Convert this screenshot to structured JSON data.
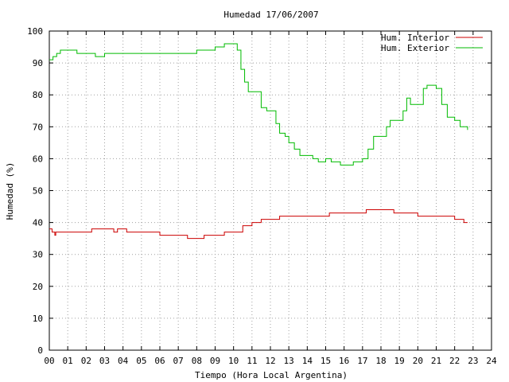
{
  "chart_data": {
    "type": "line",
    "title": "Humedad 17/06/2007",
    "xlabel": "Tiempo (Hora Local Argentina)",
    "ylabel": "Humedad (%)",
    "xlim": [
      0,
      24
    ],
    "ylim": [
      0,
      100
    ],
    "x_ticks": [
      "00",
      "01",
      "02",
      "03",
      "04",
      "05",
      "06",
      "07",
      "08",
      "09",
      "10",
      "11",
      "12",
      "13",
      "14",
      "15",
      "16",
      "17",
      "18",
      "19",
      "20",
      "21",
      "22",
      "23",
      "24"
    ],
    "y_ticks": [
      "0",
      "10",
      "20",
      "30",
      "40",
      "50",
      "60",
      "70",
      "80",
      "90",
      "100"
    ],
    "grid": true,
    "legend_position": "top-right",
    "series": [
      {
        "name": "Hum. Interior",
        "color": "#cc0000",
        "points": [
          [
            0,
            38
          ],
          [
            0.15,
            37
          ],
          [
            0.3,
            36
          ],
          [
            0.35,
            37
          ],
          [
            1,
            37
          ],
          [
            1.5,
            37
          ],
          [
            2,
            37
          ],
          [
            2.3,
            38
          ],
          [
            3,
            38
          ],
          [
            3.5,
            37
          ],
          [
            3.7,
            38
          ],
          [
            4.2,
            37
          ],
          [
            4.5,
            37
          ],
          [
            5,
            37
          ],
          [
            5.5,
            37
          ],
          [
            6,
            36
          ],
          [
            6.5,
            36
          ],
          [
            7,
            36
          ],
          [
            7.5,
            35
          ],
          [
            8,
            35
          ],
          [
            8.4,
            36
          ],
          [
            9,
            36
          ],
          [
            9.5,
            37
          ],
          [
            10,
            37
          ],
          [
            10.5,
            39
          ],
          [
            11,
            40
          ],
          [
            11.5,
            41
          ],
          [
            12,
            41
          ],
          [
            12.5,
            42
          ],
          [
            13,
            42
          ],
          [
            13.5,
            42
          ],
          [
            14,
            42
          ],
          [
            14.5,
            42
          ],
          [
            15,
            42
          ],
          [
            15.2,
            43
          ],
          [
            15.8,
            43
          ],
          [
            16,
            43
          ],
          [
            16.5,
            43
          ],
          [
            17,
            43
          ],
          [
            17.2,
            44
          ],
          [
            18,
            44
          ],
          [
            18.6,
            44
          ],
          [
            18.7,
            43
          ],
          [
            19,
            43
          ],
          [
            19.5,
            43
          ],
          [
            20,
            42
          ],
          [
            20.5,
            42
          ],
          [
            21,
            42
          ],
          [
            21.5,
            42
          ],
          [
            22,
            41
          ],
          [
            22.3,
            41
          ],
          [
            22.5,
            40
          ],
          [
            22.7,
            40
          ]
        ]
      },
      {
        "name": "Hum. Exterior",
        "color": "#00bb00",
        "points": [
          [
            0,
            91
          ],
          [
            0.2,
            92
          ],
          [
            0.4,
            93
          ],
          [
            0.6,
            94
          ],
          [
            1,
            94
          ],
          [
            1.5,
            93
          ],
          [
            2,
            93
          ],
          [
            2.5,
            92
          ],
          [
            3,
            93
          ],
          [
            3.5,
            93
          ],
          [
            4,
            93
          ],
          [
            5,
            93
          ],
          [
            5.5,
            93
          ],
          [
            6,
            93
          ],
          [
            6.5,
            93
          ],
          [
            7,
            93
          ],
          [
            7.5,
            93
          ],
          [
            8,
            94
          ],
          [
            8.5,
            94
          ],
          [
            9,
            95
          ],
          [
            9.5,
            96
          ],
          [
            10,
            96
          ],
          [
            10.2,
            94
          ],
          [
            10.4,
            88
          ],
          [
            10.6,
            84
          ],
          [
            10.8,
            81
          ],
          [
            11.2,
            81
          ],
          [
            11.5,
            76
          ],
          [
            11.8,
            75
          ],
          [
            12,
            75
          ],
          [
            12.3,
            71
          ],
          [
            12.5,
            68
          ],
          [
            12.8,
            67
          ],
          [
            13,
            65
          ],
          [
            13.3,
            63
          ],
          [
            13.6,
            61
          ],
          [
            14,
            61
          ],
          [
            14.3,
            60
          ],
          [
            14.6,
            59
          ],
          [
            15,
            60
          ],
          [
            15.3,
            59
          ],
          [
            15.6,
            59
          ],
          [
            15.8,
            58
          ],
          [
            16,
            58
          ],
          [
            16.5,
            59
          ],
          [
            17,
            60
          ],
          [
            17.3,
            63
          ],
          [
            17.6,
            67
          ],
          [
            18,
            67
          ],
          [
            18.3,
            70
          ],
          [
            18.5,
            72
          ],
          [
            19,
            72
          ],
          [
            19.2,
            75
          ],
          [
            19.4,
            79
          ],
          [
            19.6,
            77
          ],
          [
            20,
            77
          ],
          [
            20.3,
            82
          ],
          [
            20.5,
            83
          ],
          [
            21,
            82
          ],
          [
            21.3,
            77
          ],
          [
            21.6,
            73
          ],
          [
            22,
            72
          ],
          [
            22.3,
            70
          ],
          [
            22.7,
            69
          ]
        ]
      }
    ]
  }
}
